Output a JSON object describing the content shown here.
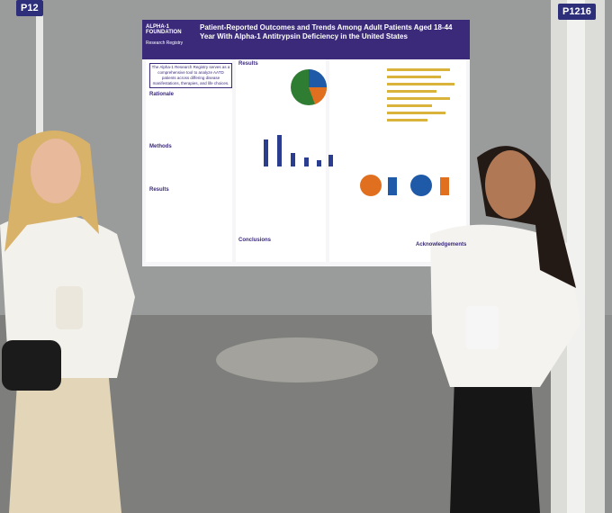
{
  "booth_labels": [
    "P12",
    "P1216"
  ],
  "poster": {
    "logo": "ALPHA-1 FOUNDATION",
    "logo_sub": "Research Registry",
    "title": "Patient-Reported Outcomes and Trends Among Adult Patients Aged 18-44 Year With Alpha-1 Antitrypsin Deficiency in the United States",
    "intro": "The Alpha-1 Research Registry serves as a comprehensive tool to analyze AATD patients across differing disease manifestations, therapies, and life choices.",
    "sections": [
      "Results",
      "Rationale",
      "Methods",
      "Results",
      "Conclusions",
      "Acknowledgements"
    ]
  }
}
